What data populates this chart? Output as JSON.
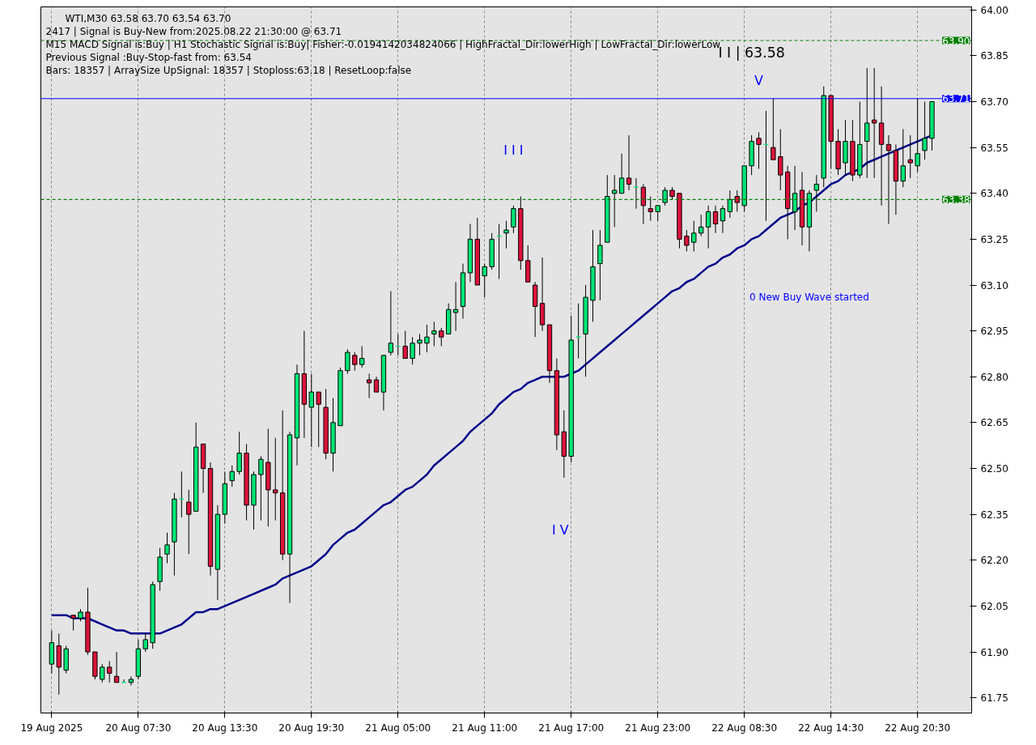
{
  "chart_data": {
    "type": "candlestick",
    "title": "WTI,M30  63.58 63.70 63.54 63.70",
    "annotations": [
      "2417 | Signal is Buy-New from:2025.08.22 21:30:00 @ 63.71",
      "M15 MACD Signal is:Buy  | H1 Stochastic Signal is:Buy| Fisher:-0.0194142034824066 | HighFractal_Dir:lowerHigh | LowFractal_Dir:lowerLow",
      "Previous Signal :Buy-Stop-fast from: 63.54",
      "Bars: 18357 | ArraySize UpSignal: 18357 | Stoploss:63.18 | ResetLoop:false",
      "I I | 63.58",
      "I I I",
      "I V",
      "V",
      "0 New Buy Wave started"
    ],
    "categories": [
      "19 Aug 2025",
      null,
      null,
      null,
      null,
      null,
      null,
      null,
      null,
      null,
      null,
      null,
      "20 Aug 07:30",
      null,
      null,
      null,
      null,
      null,
      null,
      null,
      null,
      null,
      null,
      null,
      "20 Aug 13:30",
      null,
      null,
      null,
      null,
      null,
      null,
      null,
      null,
      null,
      null,
      null,
      "20 Aug 19:30",
      null,
      null,
      null,
      null,
      null,
      null,
      null,
      null,
      null,
      null,
      null,
      "21 Aug 05:00",
      null,
      null,
      null,
      null,
      null,
      null,
      null,
      null,
      null,
      null,
      null,
      "21 Aug 11:00",
      null,
      null,
      null,
      null,
      null,
      null,
      null,
      null,
      null,
      null,
      null,
      "21 Aug 17:00",
      null,
      null,
      null,
      null,
      null,
      null,
      null,
      null,
      null,
      null,
      null,
      "21 Aug 23:00",
      null,
      null,
      null,
      null,
      null,
      null,
      null,
      null,
      null,
      null,
      null,
      "22 Aug 08:30",
      null,
      null,
      null,
      null,
      null,
      null,
      null,
      null,
      null,
      null,
      null,
      "22 Aug 14:30",
      null,
      null,
      null,
      null,
      null,
      null,
      null,
      null,
      null,
      null,
      null,
      "22 Aug 20:30",
      null,
      null
    ],
    "ohlc": [
      [
        61.86,
        61.97,
        61.83,
        61.93
      ],
      [
        61.92,
        61.96,
        61.76,
        61.85
      ],
      [
        61.84,
        61.92,
        61.83,
        61.91
      ],
      [
        62.02,
        62.02,
        61.97,
        62.01
      ],
      [
        62.01,
        62.04,
        62.0,
        62.03
      ],
      [
        62.03,
        62.11,
        61.89,
        61.9
      ],
      [
        61.9,
        61.9,
        61.81,
        61.82
      ],
      [
        61.81,
        61.86,
        61.8,
        61.85
      ],
      [
        61.85,
        61.87,
        61.8,
        61.83
      ],
      [
        61.82,
        61.9,
        61.8,
        61.8
      ],
      [
        61.8,
        61.81,
        61.8,
        61.8
      ],
      [
        61.8,
        61.82,
        61.79,
        61.81
      ],
      [
        61.82,
        61.94,
        61.81,
        61.91
      ],
      [
        61.91,
        61.96,
        61.9,
        61.94
      ],
      [
        61.93,
        62.13,
        61.91,
        62.12
      ],
      [
        62.13,
        62.24,
        62.1,
        62.21
      ],
      [
        62.22,
        62.29,
        62.19,
        62.25
      ],
      [
        62.26,
        62.42,
        62.15,
        62.4
      ],
      [
        62.4,
        62.49,
        62.34,
        62.4
      ],
      [
        62.39,
        62.43,
        62.22,
        62.35
      ],
      [
        62.36,
        62.65,
        62.36,
        62.57
      ],
      [
        62.58,
        62.58,
        62.42,
        62.5
      ],
      [
        62.5,
        62.52,
        62.15,
        62.18
      ],
      [
        62.17,
        62.38,
        62.07,
        62.35
      ],
      [
        62.35,
        62.49,
        62.32,
        62.45
      ],
      [
        62.46,
        62.51,
        62.44,
        62.49
      ],
      [
        62.49,
        62.62,
        62.48,
        62.55
      ],
      [
        62.55,
        62.58,
        62.33,
        62.38
      ],
      [
        62.38,
        62.49,
        62.3,
        62.48
      ],
      [
        62.48,
        62.54,
        62.33,
        62.53
      ],
      [
        62.52,
        62.63,
        62.31,
        62.43
      ],
      [
        62.43,
        62.6,
        62.33,
        62.42
      ],
      [
        62.42,
        62.69,
        62.2,
        62.22
      ],
      [
        62.22,
        62.62,
        62.06,
        62.61
      ],
      [
        62.6,
        62.84,
        62.51,
        62.81
      ],
      [
        62.81,
        62.95,
        62.6,
        62.71
      ],
      [
        62.7,
        62.81,
        62.57,
        62.75
      ],
      [
        62.75,
        62.75,
        62.57,
        62.71
      ],
      [
        62.7,
        62.76,
        62.53,
        62.55
      ],
      [
        62.55,
        62.73,
        62.49,
        62.65
      ],
      [
        62.64,
        62.83,
        62.64,
        62.82
      ],
      [
        62.82,
        62.89,
        62.81,
        62.88
      ],
      [
        62.87,
        62.88,
        62.82,
        62.84
      ],
      [
        62.84,
        62.9,
        62.83,
        62.86
      ],
      [
        62.79,
        62.81,
        62.73,
        62.78
      ],
      [
        62.79,
        62.8,
        62.75,
        62.75
      ],
      [
        62.75,
        62.87,
        62.69,
        62.87
      ],
      [
        62.88,
        63.08,
        62.87,
        62.91
      ],
      [
        62.9,
        62.94,
        62.87,
        62.9
      ],
      [
        62.9,
        62.95,
        62.86,
        62.86
      ],
      [
        62.86,
        62.93,
        62.84,
        62.91
      ],
      [
        62.91,
        62.94,
        62.87,
        62.92
      ],
      [
        62.91,
        62.97,
        62.88,
        62.93
      ],
      [
        62.94,
        62.98,
        62.9,
        62.95
      ],
      [
        62.95,
        62.96,
        62.9,
        62.93
      ],
      [
        62.94,
        63.04,
        62.94,
        63.02
      ],
      [
        63.01,
        63.11,
        62.95,
        63.02
      ],
      [
        63.03,
        63.17,
        62.99,
        63.14
      ],
      [
        63.14,
        63.3,
        63.11,
        63.25
      ],
      [
        63.25,
        63.32,
        63.1,
        63.1
      ],
      [
        63.13,
        63.17,
        63.06,
        63.16
      ],
      [
        63.16,
        63.27,
        63.15,
        63.25
      ],
      [
        63.26,
        63.3,
        63.12,
        63.26
      ],
      [
        63.27,
        63.31,
        63.22,
        63.28
      ],
      [
        63.29,
        63.36,
        63.27,
        63.35
      ],
      [
        63.35,
        63.39,
        63.15,
        63.18
      ],
      [
        63.18,
        63.23,
        63.11,
        63.11
      ],
      [
        63.1,
        63.11,
        62.93,
        63.03
      ],
      [
        63.04,
        63.19,
        62.95,
        62.97
      ],
      [
        62.97,
        62.97,
        62.78,
        62.82
      ],
      [
        62.82,
        62.86,
        62.56,
        62.61
      ],
      [
        62.62,
        62.69,
        62.47,
        62.54
      ],
      [
        62.54,
        63.0,
        62.52,
        62.92
      ],
      [
        62.93,
        63.04,
        62.86,
        62.93
      ],
      [
        62.94,
        63.1,
        62.8,
        63.06
      ],
      [
        63.05,
        63.28,
        62.98,
        63.16
      ],
      [
        63.17,
        63.28,
        63.05,
        63.23
      ],
      [
        63.24,
        63.46,
        63.24,
        63.39
      ],
      [
        63.4,
        63.46,
        63.29,
        63.41
      ],
      [
        63.4,
        63.53,
        63.4,
        63.45
      ],
      [
        63.45,
        63.59,
        63.41,
        63.43
      ],
      [
        63.42,
        63.45,
        63.35,
        63.42
      ],
      [
        63.42,
        63.43,
        63.3,
        63.36
      ],
      [
        63.35,
        63.39,
        63.31,
        63.34
      ],
      [
        63.34,
        63.36,
        63.31,
        63.36
      ],
      [
        63.37,
        63.42,
        63.36,
        63.41
      ],
      [
        63.41,
        63.42,
        63.38,
        63.39
      ],
      [
        63.4,
        63.4,
        63.22,
        63.25
      ],
      [
        63.26,
        63.28,
        63.21,
        63.23
      ],
      [
        63.24,
        63.31,
        63.21,
        63.27
      ],
      [
        63.27,
        63.33,
        63.26,
        63.29
      ],
      [
        63.29,
        63.36,
        63.22,
        63.34
      ],
      [
        63.34,
        63.36,
        63.27,
        63.3
      ],
      [
        63.31,
        63.36,
        63.27,
        63.35
      ],
      [
        63.34,
        63.41,
        63.32,
        63.38
      ],
      [
        63.39,
        63.41,
        63.34,
        63.37
      ],
      [
        63.36,
        63.49,
        63.34,
        63.49
      ],
      [
        63.49,
        63.59,
        63.46,
        63.57
      ],
      [
        63.58,
        63.6,
        63.48,
        63.56
      ],
      [
        63.56,
        63.67,
        63.31,
        63.56
      ],
      [
        63.55,
        63.71,
        63.51,
        63.51
      ],
      [
        63.52,
        63.61,
        63.41,
        63.46
      ],
      [
        63.47,
        63.49,
        63.25,
        63.35
      ],
      [
        63.34,
        63.49,
        63.28,
        63.4
      ],
      [
        63.41,
        63.47,
        63.23,
        63.29
      ],
      [
        63.29,
        63.41,
        63.21,
        63.4
      ],
      [
        63.41,
        63.46,
        63.34,
        63.43
      ],
      [
        63.45,
        63.75,
        63.42,
        63.72
      ],
      [
        63.72,
        63.72,
        63.48,
        63.57
      ],
      [
        63.57,
        63.61,
        63.46,
        63.48
      ],
      [
        63.5,
        63.64,
        63.46,
        63.57
      ],
      [
        63.57,
        63.64,
        63.44,
        63.46
      ],
      [
        63.46,
        63.7,
        63.45,
        63.56
      ],
      [
        63.57,
        63.81,
        63.45,
        63.63
      ],
      [
        63.64,
        63.81,
        63.45,
        63.63
      ],
      [
        63.63,
        63.75,
        63.36,
        63.56
      ],
      [
        63.56,
        63.59,
        63.3,
        63.54
      ],
      [
        63.54,
        63.56,
        63.33,
        63.44
      ],
      [
        63.44,
        63.61,
        63.42,
        63.49
      ],
      [
        63.51,
        63.59,
        63.45,
        63.5
      ],
      [
        63.49,
        63.71,
        63.47,
        63.53
      ],
      [
        63.54,
        63.7,
        63.51,
        63.58
      ],
      [
        63.58,
        63.7,
        63.54,
        63.7
      ]
    ],
    "colors": [
      "#00e676",
      "#dc143c",
      "#00e676",
      "#dc143c",
      "#00e676",
      "#dc143c",
      "#dc143c",
      "#00e676",
      "#dc143c",
      "#dc143c",
      "#00e676",
      "#00e676",
      "#00e676",
      "#00e676",
      "#00e676",
      "#00e676",
      "#00e676",
      "#00e676",
      "#00e676",
      "#dc143c",
      "#00e676",
      "#dc143c",
      "#dc143c",
      "#00e676",
      "#00e676",
      "#00e676",
      "#00e676",
      "#dc143c",
      "#00e676",
      "#00e676",
      "#dc143c",
      "#dc143c",
      "#dc143c",
      "#00e676",
      "#00e676",
      "#dc143c",
      "#00e676",
      "#dc143c",
      "#dc143c",
      "#00e676",
      "#00e676",
      "#00e676",
      "#dc143c",
      "#00e676",
      "#dc143c",
      "#dc143c",
      "#00e676",
      "#00e676",
      "#00e676",
      "#dc143c",
      "#00e676",
      "#00e676",
      "#00e676",
      "#00e676",
      "#dc143c",
      "#00e676",
      "#00e676",
      "#00e676",
      "#00e676",
      "#dc143c",
      "#00e676",
      "#00e676",
      "#00e676",
      "#00e676",
      "#00e676",
      "#dc143c",
      "#dc143c",
      "#dc143c",
      "#dc143c",
      "#dc143c",
      "#dc143c",
      "#dc143c",
      "#00e676",
      "#00e676",
      "#00e676",
      "#00e676",
      "#00e676",
      "#00e676",
      "#00e676",
      "#00e676",
      "#dc143c",
      "#00e676",
      "#dc143c",
      "#dc143c",
      "#00e676",
      "#00e676",
      "#dc143c",
      "#dc143c",
      "#dc143c",
      "#00e676",
      "#00e676",
      "#00e676",
      "#dc143c",
      "#00e676",
      "#00e676",
      "#dc143c",
      "#00e676",
      "#00e676",
      "#dc143c",
      "#00e676",
      "#dc143c",
      "#dc143c",
      "#dc143c",
      "#00e676",
      "#dc143c",
      "#00e676",
      "#00e676",
      "#00e676",
      "#dc143c",
      "#dc143c",
      "#00e676",
      "#dc143c",
      "#00e676",
      "#00e676",
      "#dc143c",
      "#dc143c",
      "#dc143c",
      "#dc143c",
      "#00e676",
      "#dc143c",
      "#00e676",
      "#00e676",
      "#00e676"
    ],
    "series": [
      {
        "type": "line",
        "color": "#00008b",
        "values": [
          62.02,
          62.02,
          62.02,
          62.01,
          62.01,
          62.01,
          62.0,
          61.99,
          61.98,
          61.97,
          61.97,
          61.96,
          61.96,
          61.96,
          61.96,
          61.96,
          61.97,
          61.98,
          61.99,
          62.01,
          62.03,
          62.03,
          62.04,
          62.04,
          62.05,
          62.06,
          62.07,
          62.08,
          62.09,
          62.1,
          62.11,
          62.12,
          62.14,
          62.15,
          62.16,
          62.17,
          62.18,
          62.2,
          62.22,
          62.25,
          62.27,
          62.29,
          62.3,
          62.32,
          62.34,
          62.36,
          62.38,
          62.39,
          62.41,
          62.43,
          62.44,
          62.46,
          62.48,
          62.51,
          62.53,
          62.55,
          62.57,
          62.59,
          62.62,
          62.64,
          62.66,
          62.68,
          62.71,
          62.73,
          62.75,
          62.76,
          62.78,
          62.79,
          62.8,
          62.8,
          62.8,
          62.8,
          62.81,
          62.82,
          62.84,
          62.86,
          62.88,
          62.9,
          62.92,
          62.94,
          62.96,
          62.98,
          63.0,
          63.02,
          63.04,
          63.06,
          63.08,
          63.09,
          63.11,
          63.12,
          63.14,
          63.16,
          63.17,
          63.19,
          63.2,
          63.22,
          63.23,
          63.25,
          63.26,
          63.28,
          63.3,
          63.32,
          63.33,
          63.34,
          63.36,
          63.37,
          63.39,
          63.41,
          63.43,
          63.44,
          63.46,
          63.47,
          63.48,
          63.5,
          63.51,
          63.52,
          63.53,
          63.54,
          63.55,
          63.56,
          63.57,
          63.58,
          63.59
        ]
      }
    ],
    "ylim": [
      61.7,
      64.01
    ],
    "yticks": [
      {
        "value": 61.75,
        "label": "61.75"
      },
      {
        "value": 61.9,
        "label": "61.90"
      },
      {
        "value": 62.05,
        "label": "62.05"
      },
      {
        "value": 62.2,
        "label": "62.20"
      },
      {
        "value": 62.35,
        "label": "62.35"
      },
      {
        "value": 62.5,
        "label": "62.50"
      },
      {
        "value": 62.65,
        "label": "62.65"
      },
      {
        "value": 62.8,
        "label": "62.80"
      },
      {
        "value": 62.95,
        "label": "62.95"
      },
      {
        "value": 63.1,
        "label": "63.10"
      },
      {
        "value": 63.25,
        "label": "63.25"
      },
      {
        "value": 63.4,
        "label": "63.40"
      },
      {
        "value": 63.55,
        "label": "63.55"
      },
      {
        "value": 63.7,
        "label": "63.70"
      },
      {
        "value": 63.85,
        "label": "63.85"
      },
      {
        "value": 64.0,
        "label": "64.00"
      }
    ],
    "ref_lines": [
      {
        "axis": "y",
        "value": 63.9,
        "label": "63.90",
        "color": "#008000",
        "line_style": "dashed"
      },
      {
        "axis": "y",
        "value": 63.71,
        "label": "63.71",
        "color": "#0000ff",
        "line_style": "solid"
      },
      {
        "axis": "y",
        "value": 63.38,
        "label": "63.38",
        "color": "#008000",
        "line_style": "dashed"
      }
    ],
    "grid": "x"
  }
}
